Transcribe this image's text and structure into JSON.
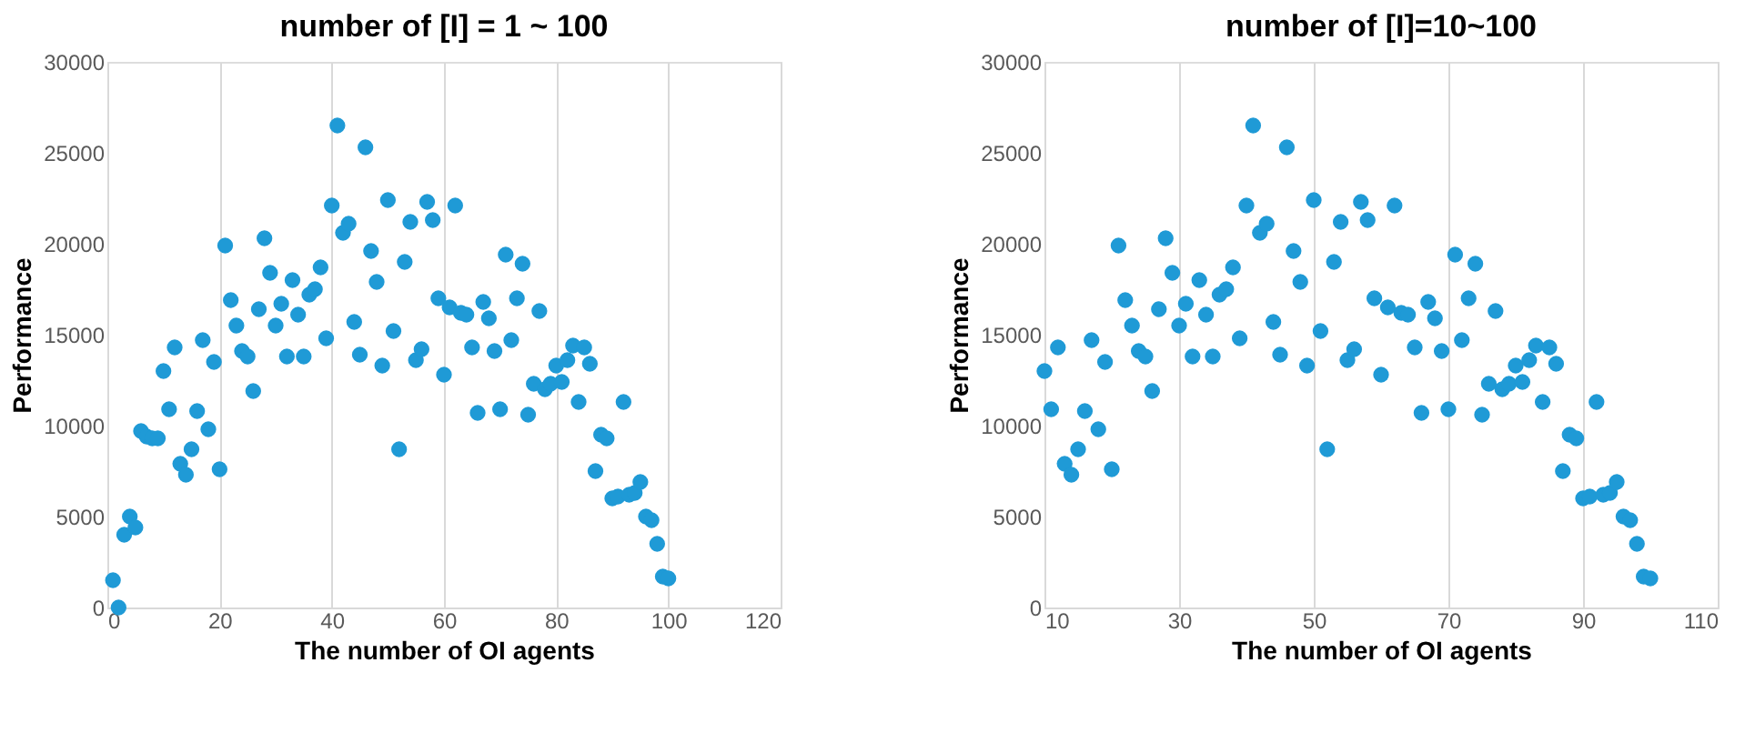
{
  "chart_data": [
    {
      "type": "scatter",
      "title": "number of [I] = 1 ~ 100",
      "xlabel": "The number of OI agents",
      "ylabel": "Performance",
      "grid": "x",
      "x": [
        1,
        2,
        3,
        4,
        5,
        6,
        7,
        8,
        9,
        10,
        11,
        12,
        13,
        14,
        15,
        16,
        17,
        18,
        19,
        20,
        21,
        22,
        23,
        24,
        25,
        26,
        27,
        28,
        29,
        30,
        31,
        32,
        33,
        34,
        35,
        36,
        37,
        38,
        39,
        40,
        41,
        42,
        43,
        44,
        45,
        46,
        47,
        48,
        49,
        50,
        51,
        52,
        53,
        54,
        55,
        56,
        57,
        58,
        59,
        60,
        61,
        62,
        63,
        64,
        65,
        66,
        67,
        68,
        69,
        70,
        71,
        72,
        73,
        74,
        75,
        76,
        77,
        78,
        79,
        80,
        81,
        82,
        83,
        84,
        85,
        86,
        87,
        88,
        89,
        90,
        91,
        92,
        93,
        94,
        95,
        96,
        97,
        98,
        99,
        100
      ],
      "series": [
        {
          "color": "#1f9ad6",
          "values": [
            1500,
            0,
            4000,
            5000,
            4400,
            9700,
            9400,
            9300,
            9300,
            13000,
            10900,
            14300,
            7900,
            7300,
            8700,
            10800,
            14700,
            9800,
            13500,
            7600,
            19900,
            16900,
            15500,
            14100,
            13800,
            11900,
            16400,
            20300,
            18400,
            15500,
            16700,
            13800,
            18000,
            16100,
            13800,
            17200,
            17500,
            18700,
            14800,
            22100,
            26500,
            20600,
            21100,
            15700,
            13900,
            25300,
            19600,
            17900,
            13300,
            22400,
            15200,
            8700,
            19000,
            21200,
            13600,
            14200,
            22300,
            21300,
            17000,
            12800,
            16500,
            22100,
            16200,
            16100,
            14300,
            10700,
            16800,
            15900,
            14100,
            10900,
            19400,
            14700,
            17000,
            18900,
            10600,
            12300,
            16300,
            12000,
            12300,
            13300,
            12400,
            13600,
            14400,
            11300,
            14300,
            13400,
            7500,
            9500,
            9300,
            6000,
            6100,
            11300,
            6200,
            6300,
            6900,
            5000,
            4800,
            3500,
            1700,
            1600
          ]
        }
      ],
      "xlim": [
        0,
        120
      ],
      "xticks": [
        0,
        20,
        40,
        60,
        80,
        100,
        120
      ],
      "ylim": [
        0,
        30000
      ],
      "yticks": [
        0,
        5000,
        10000,
        15000,
        20000,
        25000,
        30000
      ]
    },
    {
      "type": "scatter",
      "title": "number of [I]=10~100",
      "xlabel": "The number of OI agents",
      "ylabel": "Performance",
      "grid": "x",
      "x": [
        10,
        11,
        12,
        13,
        14,
        15,
        16,
        17,
        18,
        19,
        20,
        21,
        22,
        23,
        24,
        25,
        26,
        27,
        28,
        29,
        30,
        31,
        32,
        33,
        34,
        35,
        36,
        37,
        38,
        39,
        40,
        41,
        42,
        43,
        44,
        45,
        46,
        47,
        48,
        49,
        50,
        51,
        52,
        53,
        54,
        55,
        56,
        57,
        58,
        59,
        60,
        61,
        62,
        63,
        64,
        65,
        66,
        67,
        68,
        69,
        70,
        71,
        72,
        73,
        74,
        75,
        76,
        77,
        78,
        79,
        80,
        81,
        82,
        83,
        84,
        85,
        86,
        87,
        88,
        89,
        90,
        91,
        92,
        93,
        94,
        95,
        96,
        97,
        98,
        99,
        100
      ],
      "series": [
        {
          "color": "#1f9ad6",
          "values": [
            13000,
            10900,
            14300,
            7900,
            7300,
            8700,
            10800,
            14700,
            9800,
            13500,
            7600,
            19900,
            16900,
            15500,
            14100,
            13800,
            11900,
            16400,
            20300,
            18400,
            15500,
            16700,
            13800,
            18000,
            16100,
            13800,
            17200,
            17500,
            18700,
            14800,
            22100,
            26500,
            20600,
            21100,
            15700,
            13900,
            25300,
            19600,
            17900,
            13300,
            22400,
            15200,
            8700,
            19000,
            21200,
            13600,
            14200,
            22300,
            21300,
            17000,
            12800,
            16500,
            22100,
            16200,
            16100,
            14300,
            10700,
            16800,
            15900,
            14100,
            10900,
            19400,
            14700,
            17000,
            18900,
            10600,
            12300,
            16300,
            12000,
            12300,
            13300,
            12400,
            13600,
            14400,
            11300,
            14300,
            13400,
            7500,
            9500,
            9300,
            6000,
            6100,
            11300,
            6200,
            6300,
            6900,
            5000,
            4800,
            3500,
            1700,
            1600
          ]
        }
      ],
      "xlim": [
        10,
        110
      ],
      "xticks": [
        10,
        30,
        50,
        70,
        90,
        110
      ],
      "ylim": [
        0,
        30000
      ],
      "yticks": [
        0,
        5000,
        10000,
        15000,
        20000,
        25000,
        30000
      ]
    }
  ]
}
